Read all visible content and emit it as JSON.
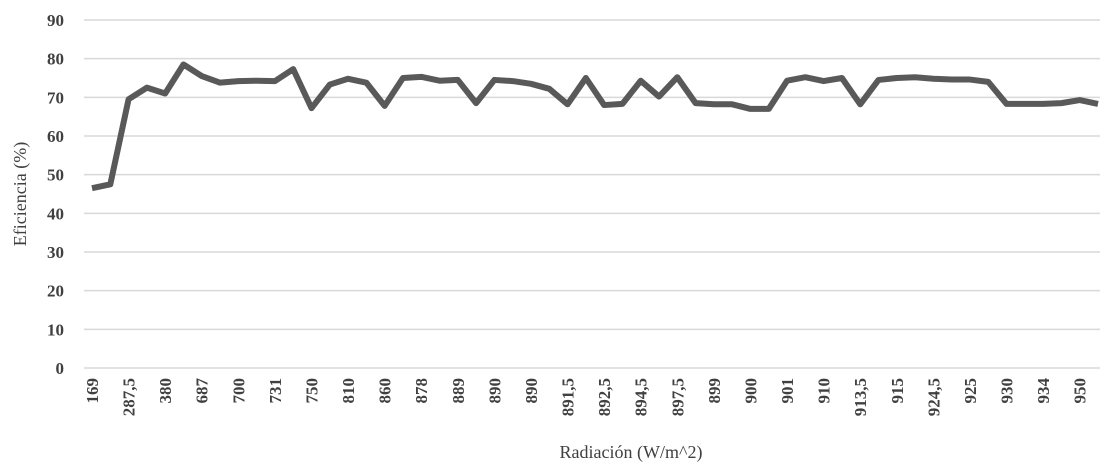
{
  "chart_data": {
    "type": "line",
    "x_label": "Radiación (W/m^2)",
    "y_label": "Eficiencia (%)",
    "categories": [
      "169",
      null,
      "287,5",
      null,
      "380",
      null,
      "687",
      null,
      "700",
      null,
      "731",
      null,
      "750",
      null,
      "810",
      null,
      "860",
      null,
      "878",
      null,
      "889",
      null,
      "890",
      null,
      "890",
      null,
      "891,5",
      null,
      "892,5",
      null,
      "894,5",
      null,
      "897,5",
      null,
      "899",
      null,
      "900",
      null,
      "901",
      null,
      "910",
      null,
      "913,5",
      null,
      "915",
      null,
      "924,5",
      null,
      "925",
      null,
      "930",
      null,
      "934",
      null,
      "950",
      null
    ],
    "series": [
      {
        "name": "Eficiencia",
        "color": "#595959",
        "values": [
          46.5,
          47.5,
          69.5,
          72.5,
          71,
          78.5,
          75.5,
          73.8,
          74.2,
          74.3,
          74.2,
          77.3,
          67.2,
          73.3,
          74.8,
          73.8,
          67.8,
          75,
          75.3,
          74.3,
          74.5,
          68.5,
          74.5,
          74.2,
          73.5,
          72.2,
          68.2,
          75,
          68,
          68.3,
          74.3,
          70.2,
          75.2,
          68.5,
          68.2,
          68.2,
          67,
          67,
          74.3,
          75.2,
          74.2,
          75,
          68.2,
          74.5,
          75,
          75.2,
          74.8,
          74.6,
          74.6,
          74,
          68.3,
          68.3,
          68.3,
          68.5,
          69.3,
          68.3
        ]
      }
    ],
    "ylim": [
      0,
      90
    ],
    "yticks": [
      0,
      10,
      20,
      30,
      40,
      50,
      60,
      70,
      80,
      90
    ],
    "grid": true
  }
}
